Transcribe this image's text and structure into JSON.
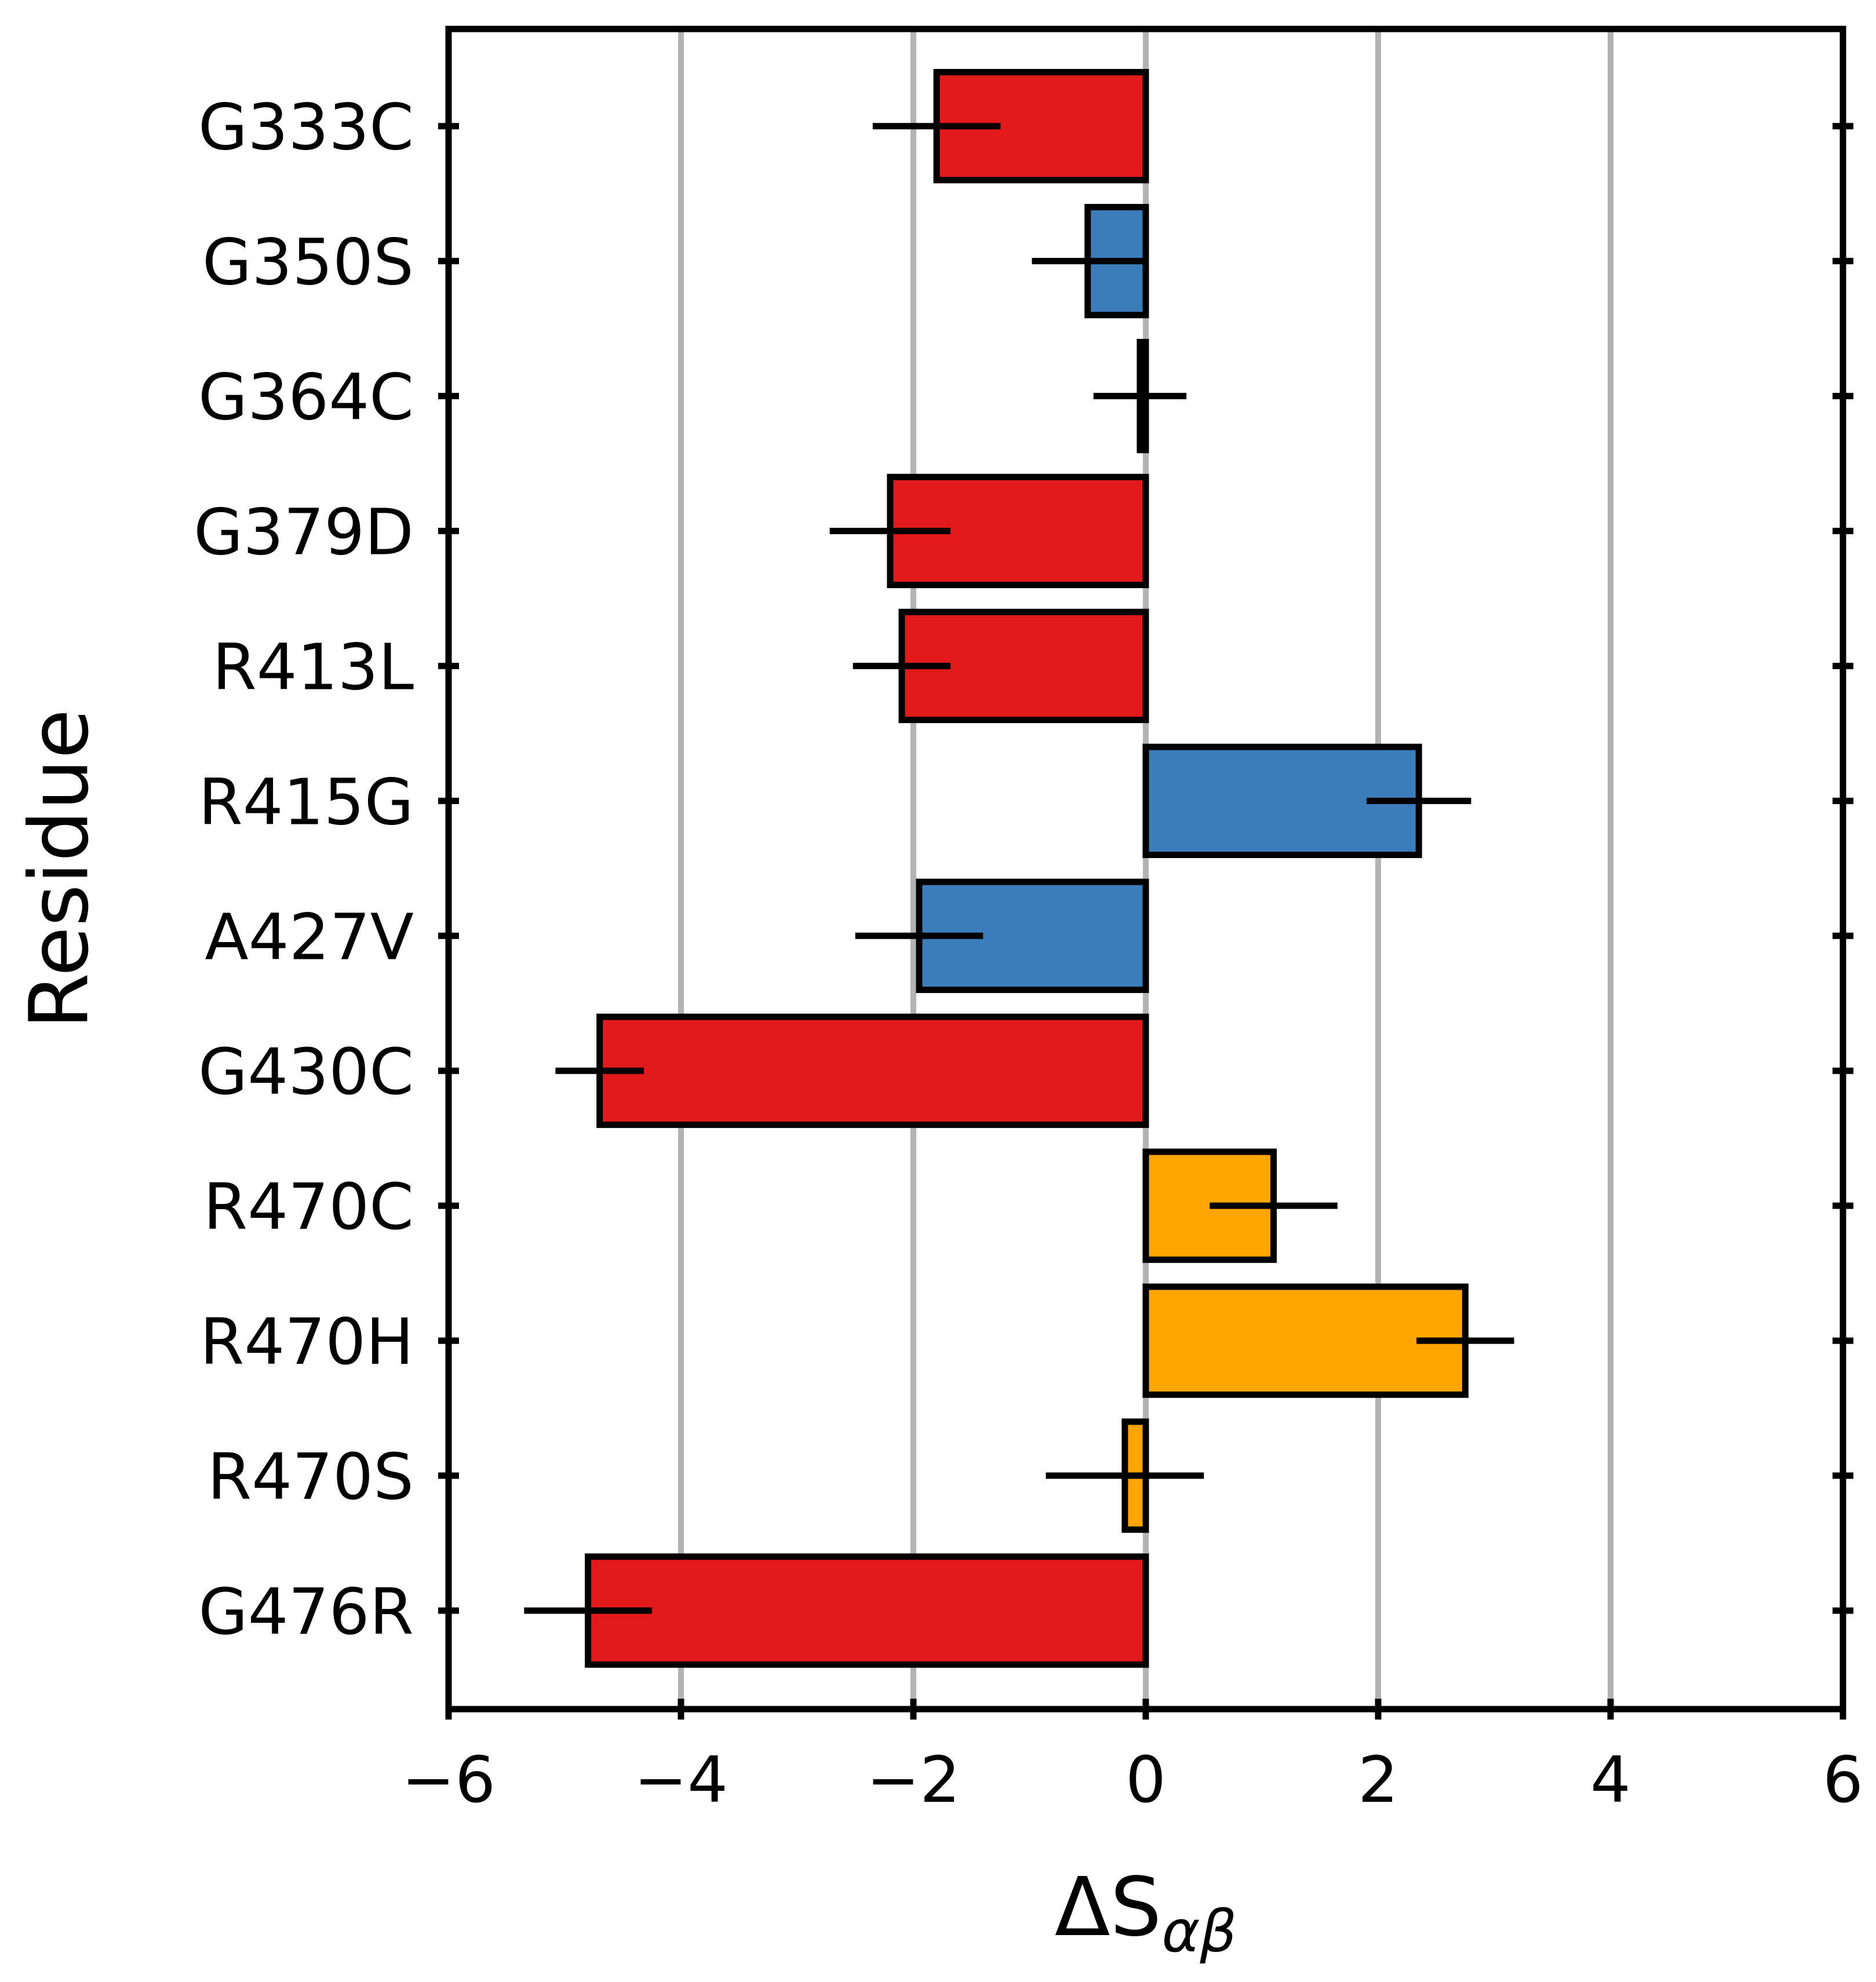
{
  "chart_data": {
    "type": "bar",
    "orientation": "horizontal",
    "title": "",
    "xlabel": "ΔS",
    "xlabel_subscript": "αβ",
    "ylabel": "Residue",
    "xlim": [
      -6,
      6
    ],
    "xticks": [
      -6,
      -4,
      -2,
      0,
      2,
      4,
      6
    ],
    "xtick_labels": [
      "−6",
      "−4",
      "−2",
      "0",
      "2",
      "4",
      "6"
    ],
    "grid": "vertical",
    "categories": [
      "G333C",
      "G350S",
      "G364C",
      "G379D",
      "R413L",
      "R415G",
      "A427V",
      "G430C",
      "R470C",
      "R470H",
      "R470S",
      "G476R"
    ],
    "values": [
      -1.8,
      -0.5,
      -0.05,
      -2.2,
      -2.1,
      2.35,
      -1.95,
      -4.7,
      1.1,
      2.75,
      -0.18,
      -4.8
    ],
    "errors": [
      0.55,
      0.48,
      0.4,
      0.52,
      0.42,
      0.45,
      0.55,
      0.38,
      0.55,
      0.42,
      0.68,
      0.55
    ],
    "bar_colors": [
      "#e31a1c",
      "#3a7dba",
      "#e31a1c",
      "#e31a1c",
      "#e31a1c",
      "#3a7dba",
      "#3a7dba",
      "#e31a1c",
      "#ffa500",
      "#ffa500",
      "#ffa500",
      "#e31a1c"
    ],
    "colors": {
      "red": "#e31a1c",
      "blue": "#3a7dba",
      "orange": "#ffa500",
      "grid": "#b3b3b3",
      "edge": "#000000"
    }
  }
}
